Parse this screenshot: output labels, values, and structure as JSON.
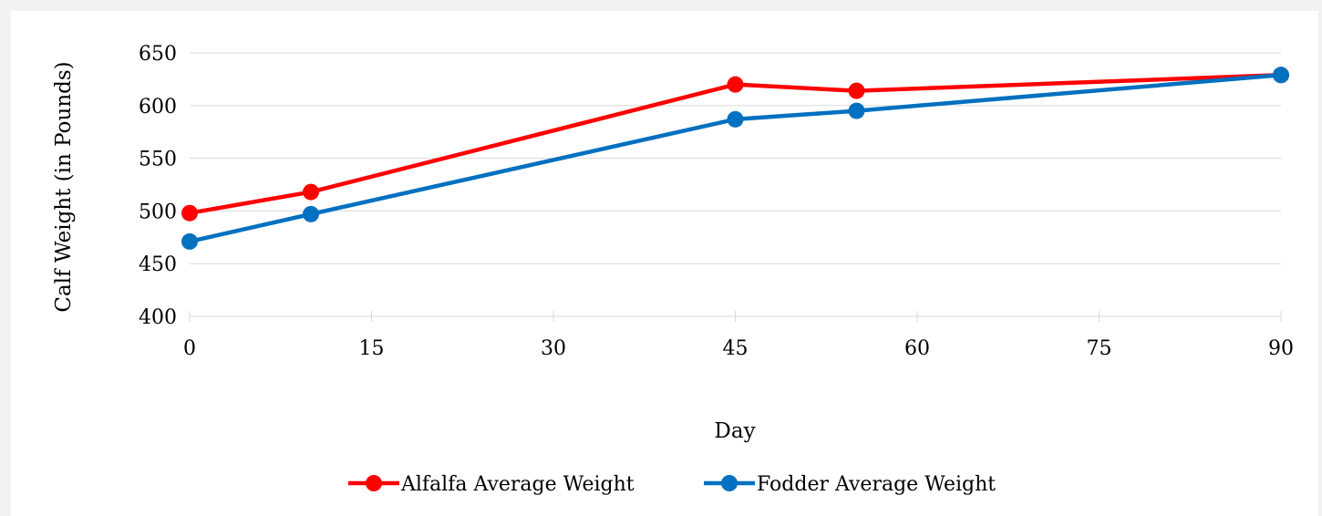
{
  "chart_data": {
    "type": "line",
    "title": "",
    "xlabel": "Day",
    "ylabel": "Calf Weight (in Pounds)",
    "xlim": [
      0,
      90
    ],
    "ylim": [
      400,
      650
    ],
    "xticks": [
      0,
      15,
      30,
      45,
      60,
      75,
      90
    ],
    "yticks": [
      400,
      450,
      500,
      550,
      600,
      650
    ],
    "grid": "horizontal",
    "legend_position": "bottom",
    "series": [
      {
        "name": "Alfalfa Average Weight",
        "color": "#ff0000",
        "x": [
          0,
          10,
          45,
          55,
          90
        ],
        "y": [
          498,
          518,
          620,
          614,
          629
        ]
      },
      {
        "name": "Fodder Average Weight",
        "color": "#0070c0",
        "x": [
          0,
          10,
          45,
          55,
          90
        ],
        "y": [
          471,
          497,
          587,
          595,
          629
        ]
      }
    ]
  }
}
